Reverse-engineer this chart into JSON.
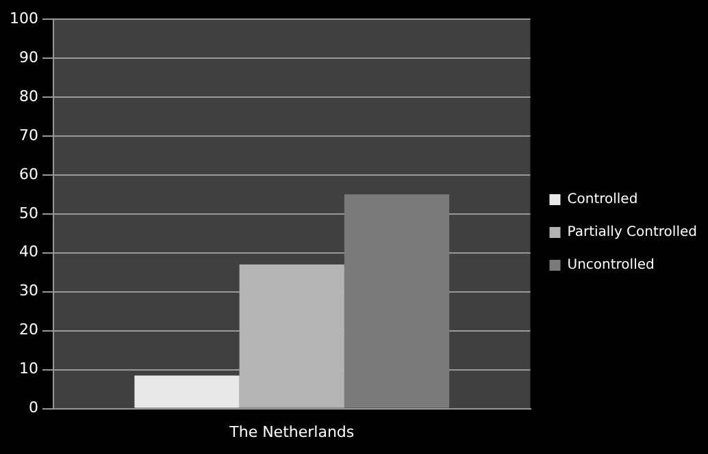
{
  "chart_data": {
    "type": "bar",
    "categories": [
      "The Netherlands"
    ],
    "series": [
      {
        "name": "Controlled",
        "color": "#e8e8e8",
        "values": [
          8.5
        ]
      },
      {
        "name": "Partially Controlled",
        "color": "#b4b4b4",
        "values": [
          37
        ]
      },
      {
        "name": "Uncontrolled",
        "color": "#7a7a7a",
        "values": [
          55
        ]
      }
    ],
    "ylim": [
      0,
      100
    ],
    "yticks": [
      0,
      10,
      20,
      30,
      40,
      50,
      60,
      70,
      80,
      90,
      100
    ],
    "grid": "y",
    "legend": "right"
  }
}
